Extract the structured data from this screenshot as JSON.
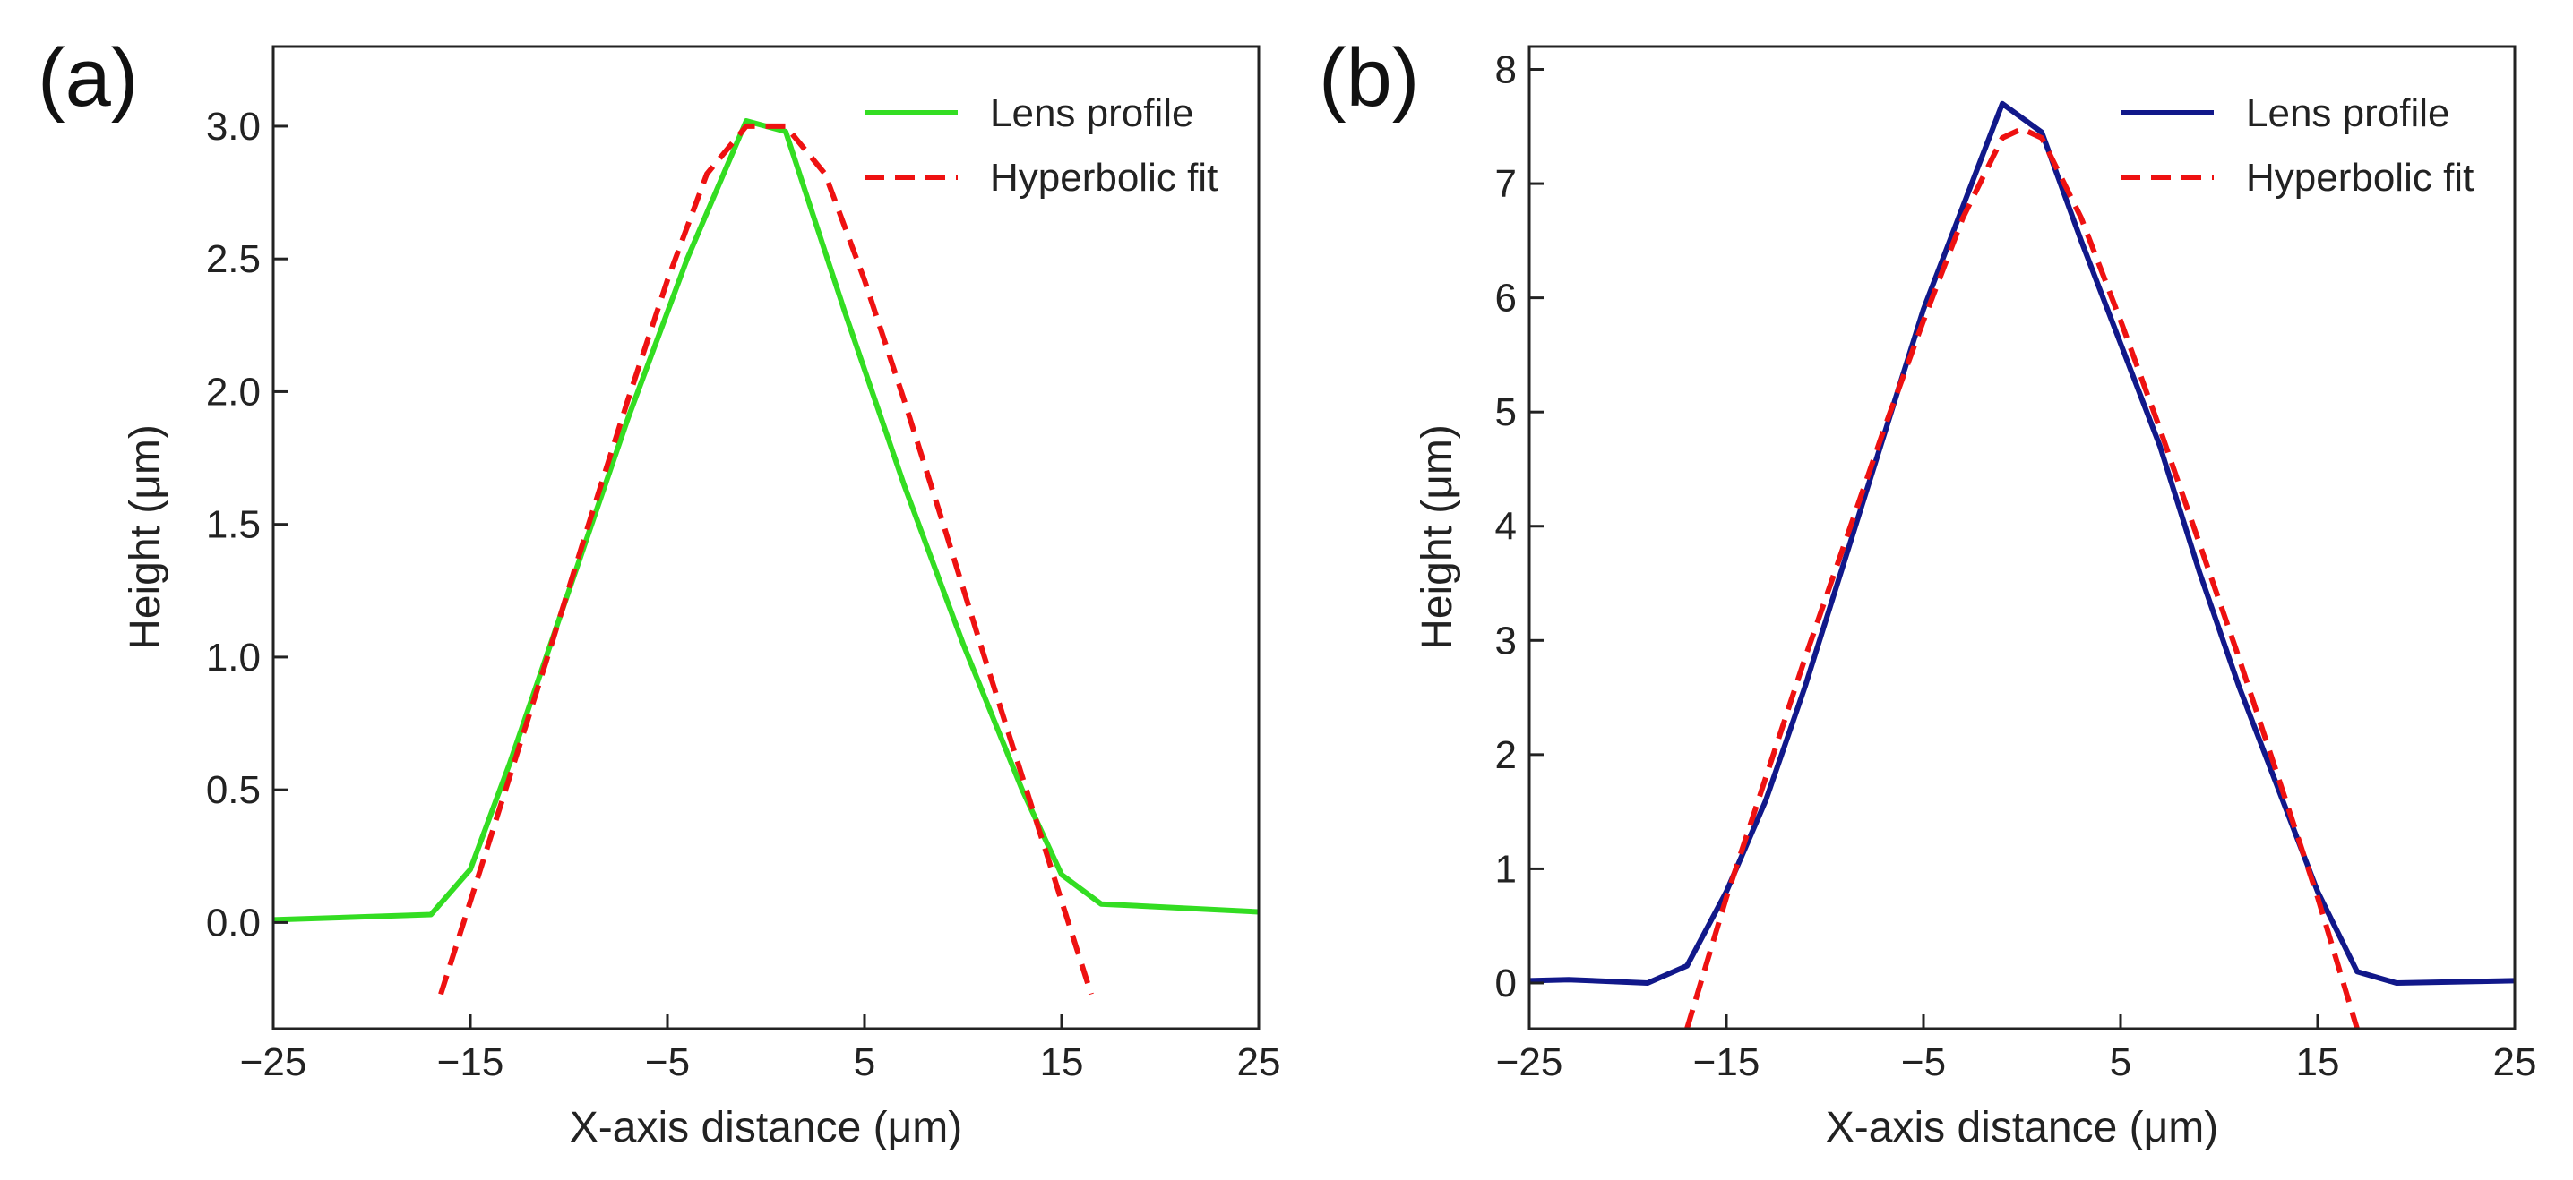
{
  "chart_data": [
    {
      "type": "line",
      "panel_label": "(a)",
      "xlabel": "X-axis distance (μm)",
      "ylabel": "Height (μm)",
      "xlim": [
        -25,
        25
      ],
      "ylim": [
        -0.4,
        3.3
      ],
      "xticks": [
        -25,
        -15,
        -5,
        5,
        15,
        25
      ],
      "xtick_labels": [
        "−25",
        "−15",
        "−5",
        "5",
        "15",
        "25"
      ],
      "yticks": [
        0.0,
        0.5,
        1.0,
        1.5,
        2.0,
        2.5,
        3.0
      ],
      "ytick_labels": [
        "0.0",
        "0.5",
        "1.0",
        "1.5",
        "2.0",
        "2.5",
        "3.0"
      ],
      "legend_position": "top-right",
      "series": [
        {
          "name": "Lens profile",
          "style": "solid",
          "color": "#33dd22",
          "x": [
            -25,
            -17,
            -15,
            -13,
            -10,
            -7,
            -4,
            -1,
            1,
            4,
            7,
            10,
            13,
            15,
            17,
            25
          ],
          "y": [
            0.01,
            0.03,
            0.2,
            0.6,
            1.25,
            1.9,
            2.5,
            3.02,
            2.98,
            2.3,
            1.65,
            1.05,
            0.5,
            0.18,
            0.07,
            0.04
          ]
        },
        {
          "name": "Hyperbolic fit",
          "style": "dashed",
          "color": "#ee1111",
          "x": [
            -16.5,
            -15,
            -13,
            -11,
            -9,
            -7,
            -5,
            -3,
            -1,
            0,
            1,
            3,
            5,
            7,
            9,
            11,
            13,
            15,
            16.5
          ],
          "y": [
            -0.27,
            0.08,
            0.55,
            1.02,
            1.5,
            1.97,
            2.42,
            2.82,
            3.0,
            3.0,
            3.0,
            2.82,
            2.42,
            1.97,
            1.5,
            1.02,
            0.55,
            0.08,
            -0.27
          ]
        }
      ]
    },
    {
      "type": "line",
      "panel_label": "(b)",
      "xlabel": "X-axis distance (μm)",
      "ylabel": "Height (μm)",
      "xlim": [
        -25,
        25
      ],
      "ylim": [
        -0.4,
        8.2
      ],
      "xticks": [
        -25,
        -15,
        -5,
        5,
        15,
        25
      ],
      "xtick_labels": [
        "−25",
        "−15",
        "−5",
        "5",
        "15",
        "25"
      ],
      "yticks": [
        0,
        1,
        2,
        3,
        4,
        5,
        6,
        7,
        8
      ],
      "ytick_labels": [
        "0",
        "1",
        "2",
        "3",
        "4",
        "5",
        "6",
        "7",
        "8"
      ],
      "legend_position": "top-right",
      "series": [
        {
          "name": "Lens profile",
          "style": "solid",
          "color": "#11188a",
          "x": [
            -25,
            -23,
            -19,
            -17,
            -15,
            -13,
            -11,
            -9,
            -7,
            -5,
            -3,
            -1,
            1,
            3,
            5,
            7,
            9,
            11,
            13,
            15,
            17,
            19,
            25
          ],
          "y": [
            0.02,
            0.03,
            0.0,
            0.15,
            0.8,
            1.6,
            2.6,
            3.7,
            4.8,
            5.9,
            6.8,
            7.7,
            7.45,
            6.5,
            5.6,
            4.7,
            3.6,
            2.6,
            1.7,
            0.8,
            0.1,
            0.0,
            0.02
          ]
        },
        {
          "name": "Hyperbolic fit",
          "style": "dashed",
          "color": "#ee1111",
          "x": [
            -17,
            -15,
            -13,
            -11,
            -9,
            -7,
            -5,
            -3,
            -1,
            0,
            1,
            3,
            5,
            7,
            9,
            11,
            13,
            15,
            17
          ],
          "y": [
            -0.4,
            0.75,
            1.8,
            2.85,
            3.85,
            4.85,
            5.8,
            6.7,
            7.4,
            7.48,
            7.4,
            6.7,
            5.8,
            4.85,
            3.85,
            2.85,
            1.8,
            0.75,
            -0.4
          ]
        }
      ]
    }
  ]
}
